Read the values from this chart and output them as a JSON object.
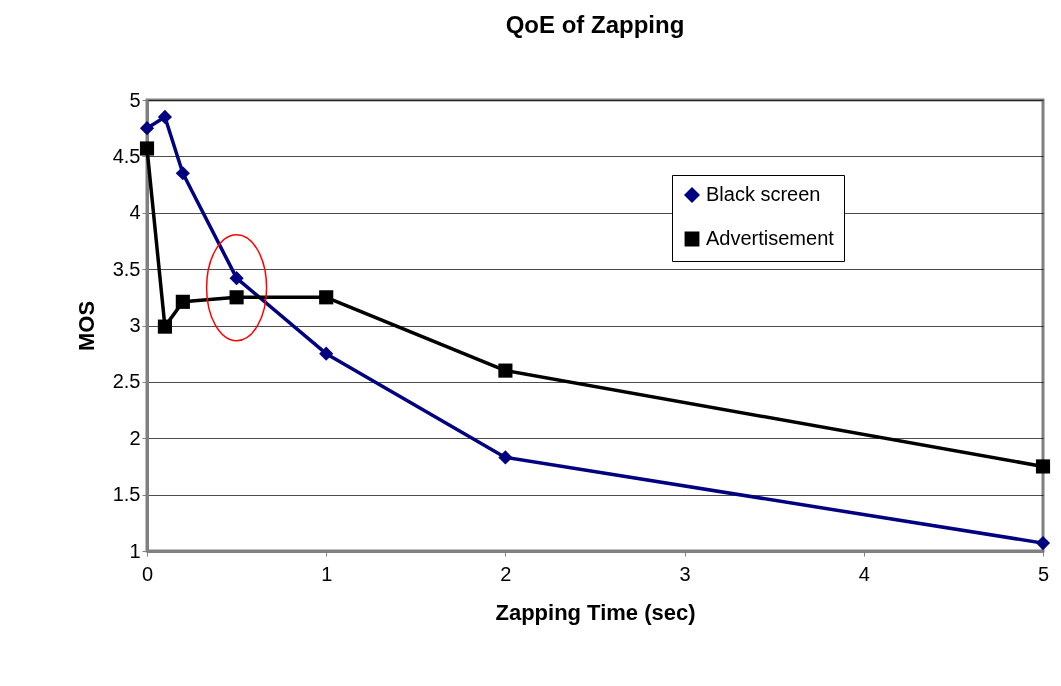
{
  "chart_data": {
    "type": "line",
    "title": "QoE of Zapping",
    "xlabel": "Zapping Time (sec)",
    "ylabel": "MOS",
    "x": [
      0,
      0.1,
      0.2,
      0.5,
      1,
      2,
      5
    ],
    "series": [
      {
        "name": "Black screen",
        "color": "#000080",
        "marker": "diamond",
        "values": [
          4.75,
          4.85,
          4.35,
          3.42,
          2.75,
          1.83,
          1.07
        ]
      },
      {
        "name": "Advertisement",
        "color": "#000000",
        "marker": "square",
        "values": [
          4.57,
          2.99,
          3.21,
          3.25,
          3.25,
          2.6,
          1.75
        ]
      }
    ],
    "xlim": [
      0,
      5
    ],
    "xticks": [
      0,
      1,
      2,
      3,
      4,
      5
    ],
    "ylim": [
      1,
      5
    ],
    "yticks": [
      1,
      1.5,
      2,
      2.5,
      3,
      3.5,
      4,
      4.5,
      5
    ],
    "grid": "y",
    "legend": "top right"
  }
}
